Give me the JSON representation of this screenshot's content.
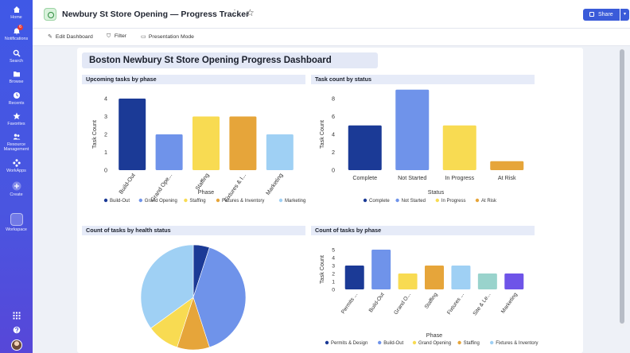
{
  "nav": {
    "home": "Home",
    "notifications": "Notifications",
    "notifications_badge": "6",
    "search": "Search",
    "browse": "Browse",
    "recents": "Recents",
    "favorites": "Favorites",
    "resource_management_1": "Resource",
    "resource_management_2": "Management",
    "workapps": "WorkApps",
    "create": "Create",
    "workspace": "Workspace"
  },
  "header": {
    "title": "Newbury St Store Opening — Progress Tracker",
    "share_label": "Share"
  },
  "toolbar": {
    "edit_dashboard": "Edit Dashboard",
    "filter": "Filter",
    "presentation_mode": "Presentation Mode"
  },
  "dashboard": {
    "title": "Boston Newbury St Store Opening Progress Dashboard"
  },
  "colors": {
    "navy": "#1b3a96",
    "blue": "#6f93ea",
    "yellow": "#f8db52",
    "orange": "#e6a53a",
    "light_blue": "#9fd0f4",
    "teal": "#99d3cc",
    "purple": "#6e54e8"
  },
  "chart_data": [
    {
      "id": "phase",
      "type": "bar",
      "title": "Upcoming tasks by phase",
      "xlabel": "Phase",
      "ylabel": "Task Count",
      "ylim": [
        0,
        4
      ],
      "yticks": [
        "0",
        "1",
        "2",
        "3",
        "4"
      ],
      "categories": [
        "Build-Out",
        "Grand Ope...",
        "Staffing",
        "Fixtures & I...",
        "Marketing"
      ],
      "values": [
        4,
        2,
        3,
        3,
        2
      ],
      "colors": [
        "navy",
        "blue",
        "yellow",
        "orange",
        "light_blue"
      ],
      "legend": [
        "Build-Out",
        "Grand Opening",
        "Staffing",
        "Fixtures & Inventory",
        "Marketing"
      ],
      "rotate_labels": true
    },
    {
      "id": "status",
      "type": "bar",
      "title": "Task count by status",
      "xlabel": "Status",
      "ylabel": "Task Count",
      "ylim": [
        0,
        8
      ],
      "yticks": [
        "0",
        "2",
        "4",
        "6",
        "8"
      ],
      "categories": [
        "Complete",
        "Not Started",
        "In Progress",
        "At Risk"
      ],
      "values": [
        5,
        9,
        5,
        1
      ],
      "colors": [
        "navy",
        "blue",
        "yellow",
        "orange"
      ],
      "legend": [
        "Complete",
        "Not Started",
        "In Progress",
        "At Risk"
      ],
      "rotate_labels": false
    },
    {
      "id": "health",
      "type": "pie",
      "title": "Count of tasks by health status",
      "values": [
        1,
        8,
        2,
        2,
        7
      ],
      "colors": [
        "navy",
        "blue",
        "orange",
        "yellow",
        "light_blue"
      ]
    },
    {
      "id": "phase2",
      "type": "bar",
      "title": "Count of tasks by phase",
      "xlabel": "Phase",
      "ylabel": "Task Count",
      "ylim": [
        0,
        5
      ],
      "yticks": [
        "0",
        "1",
        "2",
        "3",
        "4",
        "5"
      ],
      "categories": [
        "Permits ...",
        "Build-Out",
        "Grand O...",
        "Staffing",
        "Fixtures ...",
        "Site & Le...",
        "Marketing"
      ],
      "values": [
        3,
        5,
        2,
        3,
        3,
        2,
        2
      ],
      "colors": [
        "navy",
        "blue",
        "yellow",
        "orange",
        "light_blue",
        "teal",
        "purple"
      ],
      "legend": [
        "Permits & Design",
        "Build-Out",
        "Grand Opening",
        "Staffing",
        "Fixtures & Inventory"
      ],
      "rotate_labels": true
    }
  ]
}
